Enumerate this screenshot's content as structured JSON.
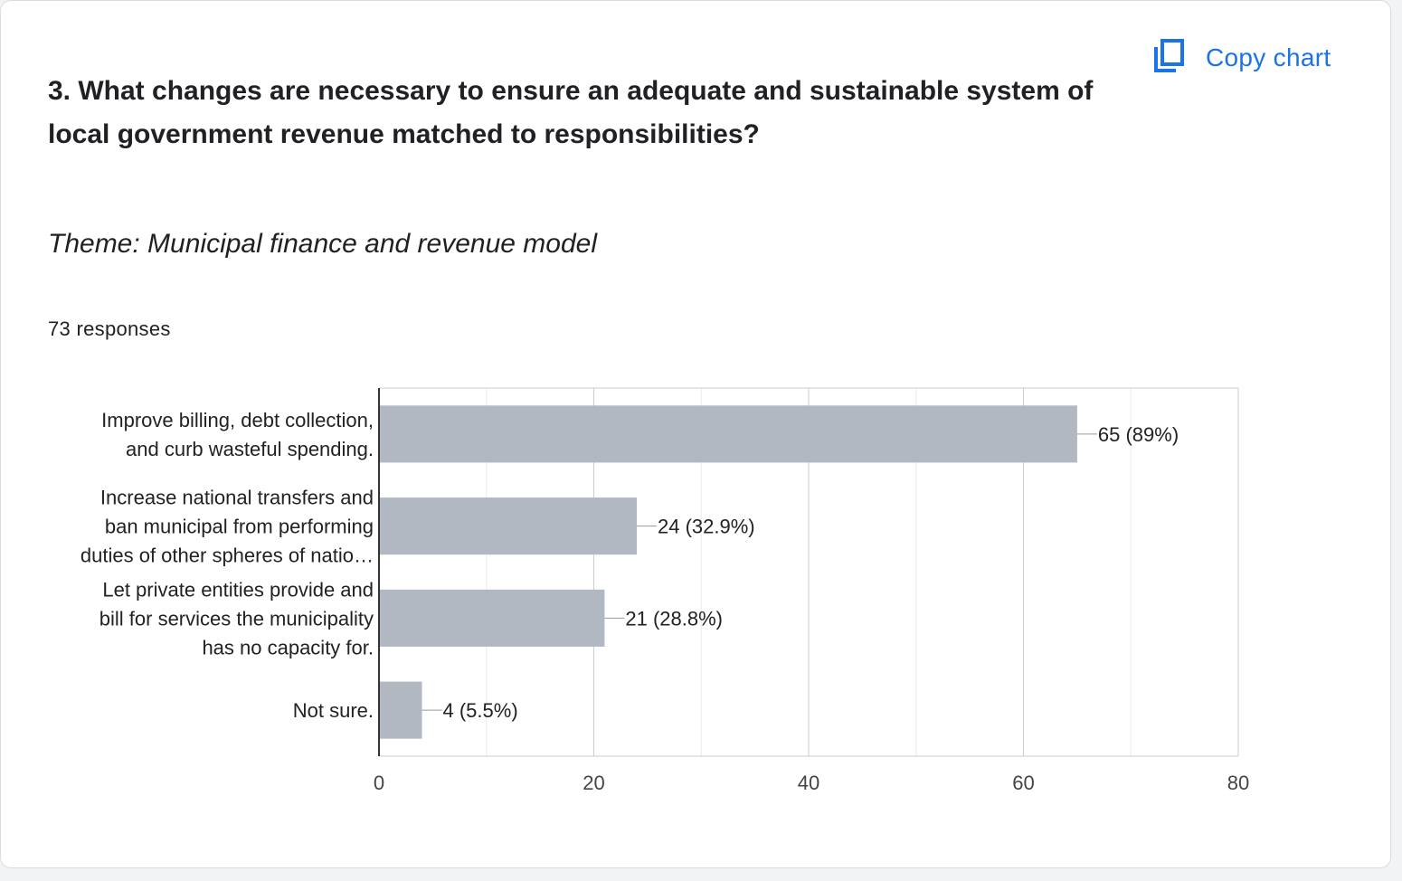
{
  "copy_chart": {
    "label": "Copy chart",
    "icon": "copy-icon"
  },
  "question": "3. What changes are necessary to ensure an adequate and sustainable system of local government revenue matched to responsibilities?",
  "theme": "Theme: Municipal finance and revenue model",
  "responses_count": "73 responses",
  "chart_data": {
    "type": "bar",
    "orientation": "horizontal",
    "categories": [
      [
        "Improve billing, debt collection,",
        "and curb wasteful spending."
      ],
      [
        "Increase national transfers and",
        "ban municipal from performing",
        "duties of other spheres of natio…"
      ],
      [
        "Let private entities provide and",
        "bill for services the municipality",
        "has no capacity for."
      ],
      [
        "Not sure."
      ]
    ],
    "values": [
      65,
      24,
      21,
      4
    ],
    "data_labels": [
      "65 (89%)",
      "24 (32.9%)",
      "21 (28.8%)",
      "4 (5.5%)"
    ],
    "x_ticks": [
      "0",
      "20",
      "40",
      "60",
      "80"
    ],
    "xlim": [
      0,
      80
    ],
    "minor_grid_step": 10,
    "grid": true,
    "bar_color": "#b1b8c1"
  },
  "colors": {
    "accent": "#1a73e8",
    "text": "#202124",
    "bar": "#b1b8c1"
  }
}
